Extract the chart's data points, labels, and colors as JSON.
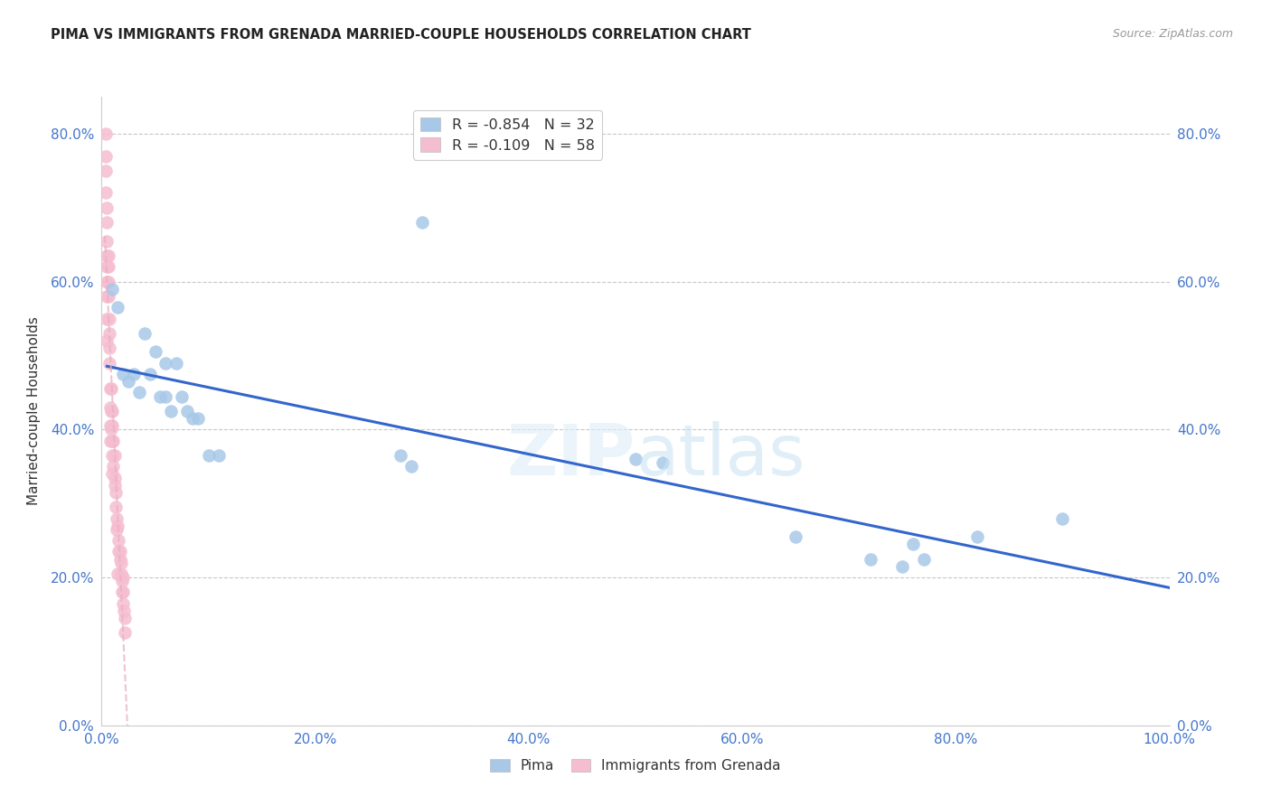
{
  "title": "PIMA VS IMMIGRANTS FROM GRENADA MARRIED-COUPLE HOUSEHOLDS CORRELATION CHART",
  "source": "Source: ZipAtlas.com",
  "ylabel": "Married-couple Households",
  "xlim": [
    0.0,
    1.0
  ],
  "ylim": [
    0.0,
    0.85
  ],
  "yticks": [
    0.0,
    0.2,
    0.4,
    0.6,
    0.8
  ],
  "ytick_labels": [
    "0.0%",
    "20.0%",
    "40.0%",
    "60.0%",
    "80.0%"
  ],
  "xticks": [
    0.0,
    0.2,
    0.4,
    0.6,
    0.8,
    1.0
  ],
  "xtick_labels": [
    "0.0%",
    "20.0%",
    "40.0%",
    "60.0%",
    "80.0%",
    "100.0%"
  ],
  "legend_entries": [
    {
      "label_r": "R = -0.854",
      "label_n": "N = 32",
      "color": "#a8c8e8"
    },
    {
      "label_r": "R = -0.109",
      "label_n": "N = 58",
      "color": "#f5bdd0"
    }
  ],
  "legend_labels_bottom": [
    "Pima",
    "Immigrants from Grenada"
  ],
  "pima_color": "#a8c8e8",
  "grenada_color": "#f5bdd0",
  "trendline_pima_color": "#3366cc",
  "trendline_grenada_color": "#e8b0c0",
  "pima_x": [
    0.01,
    0.015,
    0.02,
    0.025,
    0.03,
    0.035,
    0.04,
    0.045,
    0.05,
    0.055,
    0.06,
    0.06,
    0.065,
    0.07,
    0.075,
    0.08,
    0.085,
    0.09,
    0.1,
    0.11,
    0.28,
    0.29,
    0.3,
    0.5,
    0.525,
    0.65,
    0.72,
    0.75,
    0.76,
    0.77,
    0.82,
    0.9
  ],
  "pima_y": [
    0.59,
    0.565,
    0.475,
    0.465,
    0.475,
    0.45,
    0.53,
    0.475,
    0.505,
    0.445,
    0.49,
    0.445,
    0.425,
    0.49,
    0.445,
    0.425,
    0.415,
    0.415,
    0.365,
    0.365,
    0.365,
    0.35,
    0.68,
    0.36,
    0.355,
    0.255,
    0.225,
    0.215,
    0.245,
    0.225,
    0.255,
    0.28
  ],
  "grenada_x": [
    0.004,
    0.004,
    0.004,
    0.004,
    0.005,
    0.005,
    0.005,
    0.005,
    0.005,
    0.005,
    0.005,
    0.005,
    0.005,
    0.006,
    0.006,
    0.006,
    0.006,
    0.007,
    0.007,
    0.007,
    0.007,
    0.008,
    0.008,
    0.008,
    0.008,
    0.009,
    0.009,
    0.009,
    0.01,
    0.01,
    0.01,
    0.01,
    0.01,
    0.011,
    0.011,
    0.012,
    0.012,
    0.012,
    0.013,
    0.013,
    0.014,
    0.014,
    0.015,
    0.016,
    0.016,
    0.017,
    0.017,
    0.018,
    0.018,
    0.019,
    0.019,
    0.02,
    0.02,
    0.021,
    0.022,
    0.022,
    0.015,
    0.02
  ],
  "grenada_y": [
    0.8,
    0.77,
    0.75,
    0.72,
    0.7,
    0.68,
    0.655,
    0.635,
    0.62,
    0.6,
    0.58,
    0.55,
    0.52,
    0.635,
    0.62,
    0.6,
    0.58,
    0.55,
    0.53,
    0.51,
    0.49,
    0.455,
    0.43,
    0.405,
    0.385,
    0.455,
    0.425,
    0.4,
    0.425,
    0.385,
    0.405,
    0.365,
    0.34,
    0.385,
    0.35,
    0.365,
    0.335,
    0.325,
    0.315,
    0.295,
    0.28,
    0.265,
    0.27,
    0.25,
    0.235,
    0.235,
    0.225,
    0.22,
    0.205,
    0.195,
    0.18,
    0.18,
    0.165,
    0.155,
    0.145,
    0.125,
    0.205,
    0.2
  ]
}
